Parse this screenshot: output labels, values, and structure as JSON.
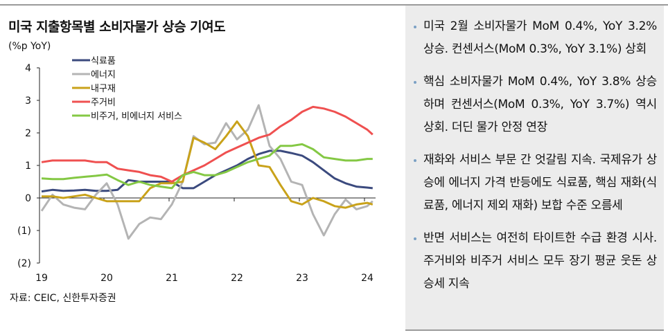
{
  "title": "미국 지출항목별 소비자물가 상승 기여도",
  "source": "자료: CEIC, 신한투자증권",
  "bullets": [
    "미국 2월 소비자물가 MoM 0.4%, YoY 3.2% 상승. 컨센서스(MoM 0.3%, YoY 3.1%) 상회",
    "핵심 소비자물가 MoM 0.4%, YoY 3.8% 상승하며 컨센서스(MoM 0.3%, YoY 3.7%) 역시 상회. 더딘 물가 안정 연장",
    "재화와 서비스 부문 간 엇갈림 지속. 국제유가 상승에 에너지 가격 반등에도 식료품, 핵심 재화(식료품, 에너지 제외 재화) 보합 수준 오름세",
    "반면 서비스는 여전히 타이트한 수급 환경 시사. 주거비와 비주거 서비스 모두 장기 평균 웃돈 상승세 지속"
  ],
  "chart_data": {
    "type": "line",
    "ylabel": "(%p YoY)",
    "ylim": [
      -2,
      4
    ],
    "yticks": [
      {
        "v": 4,
        "label": "4"
      },
      {
        "v": 3,
        "label": "3"
      },
      {
        "v": 2,
        "label": "2"
      },
      {
        "v": 1,
        "label": "1"
      },
      {
        "v": 0,
        "label": "0"
      },
      {
        "v": -1,
        "label": "(1)"
      },
      {
        "v": -2,
        "label": "(2)"
      }
    ],
    "xticks": [
      {
        "x": "2019-01",
        "label": "19"
      },
      {
        "x": "2020-01",
        "label": "20"
      },
      {
        "x": "2021-01",
        "label": "21"
      },
      {
        "x": "2022-01",
        "label": "22"
      },
      {
        "x": "2023-01",
        "label": "23"
      },
      {
        "x": "2024-01",
        "label": "24"
      }
    ],
    "legend_position": "top-left",
    "x": [
      "2019-01",
      "2019-03",
      "2019-05",
      "2019-07",
      "2019-09",
      "2019-11",
      "2020-01",
      "2020-03",
      "2020-05",
      "2020-07",
      "2020-09",
      "2020-11",
      "2021-01",
      "2021-03",
      "2021-05",
      "2021-07",
      "2021-09",
      "2021-11",
      "2022-01",
      "2022-03",
      "2022-05",
      "2022-07",
      "2022-09",
      "2022-11",
      "2023-01",
      "2023-03",
      "2023-05",
      "2023-07",
      "2023-09",
      "2023-11",
      "2024-01",
      "2024-02"
    ],
    "series": [
      {
        "name": "식료품",
        "color": "#3b4a7e",
        "values": [
          0.2,
          0.25,
          0.22,
          0.23,
          0.25,
          0.22,
          0.22,
          0.25,
          0.55,
          0.5,
          0.5,
          0.5,
          0.5,
          0.3,
          0.3,
          0.5,
          0.7,
          0.85,
          1.0,
          1.2,
          1.35,
          1.45,
          1.45,
          1.38,
          1.3,
          1.1,
          0.85,
          0.6,
          0.45,
          0.35,
          0.32,
          0.3
        ]
      },
      {
        "name": "에너지",
        "color": "#b4b4b4",
        "values": [
          -0.4,
          0.1,
          -0.2,
          -0.3,
          -0.35,
          0.1,
          0.45,
          -0.2,
          -1.25,
          -0.8,
          -0.6,
          -0.65,
          -0.2,
          0.5,
          1.9,
          1.65,
          1.7,
          2.3,
          1.8,
          2.1,
          2.85,
          1.6,
          1.2,
          0.5,
          0.4,
          -0.5,
          -1.15,
          -0.5,
          -0.05,
          -0.35,
          -0.25,
          -0.1
        ]
      },
      {
        "name": "내구재",
        "color": "#c9a21a",
        "values": [
          0.05,
          0.05,
          0.0,
          0.05,
          0.1,
          0.0,
          -0.1,
          -0.1,
          -0.1,
          -0.1,
          0.3,
          0.45,
          0.45,
          0.5,
          1.85,
          1.7,
          1.5,
          1.9,
          2.35,
          1.9,
          1.0,
          0.95,
          0.4,
          -0.1,
          -0.2,
          0.0,
          -0.1,
          -0.25,
          -0.3,
          -0.2,
          -0.15,
          -0.2
        ]
      },
      {
        "name": "주거비",
        "color": "#ef5050",
        "values": [
          1.1,
          1.15,
          1.15,
          1.15,
          1.15,
          1.1,
          1.1,
          0.9,
          0.85,
          0.8,
          0.7,
          0.65,
          0.5,
          0.7,
          0.85,
          1.0,
          1.2,
          1.4,
          1.55,
          1.7,
          1.85,
          1.95,
          2.2,
          2.4,
          2.65,
          2.8,
          2.75,
          2.65,
          2.5,
          2.3,
          2.1,
          1.95
        ]
      },
      {
        "name": "비주거, 비에너지 서비스",
        "color": "#84c844",
        "values": [
          0.6,
          0.58,
          0.58,
          0.62,
          0.65,
          0.68,
          0.72,
          0.55,
          0.4,
          0.5,
          0.4,
          0.35,
          0.3,
          0.7,
          0.8,
          0.7,
          0.7,
          0.8,
          0.95,
          1.1,
          1.2,
          1.3,
          1.6,
          1.6,
          1.65,
          1.5,
          1.25,
          1.2,
          1.15,
          1.15,
          1.2,
          1.2
        ]
      }
    ]
  }
}
